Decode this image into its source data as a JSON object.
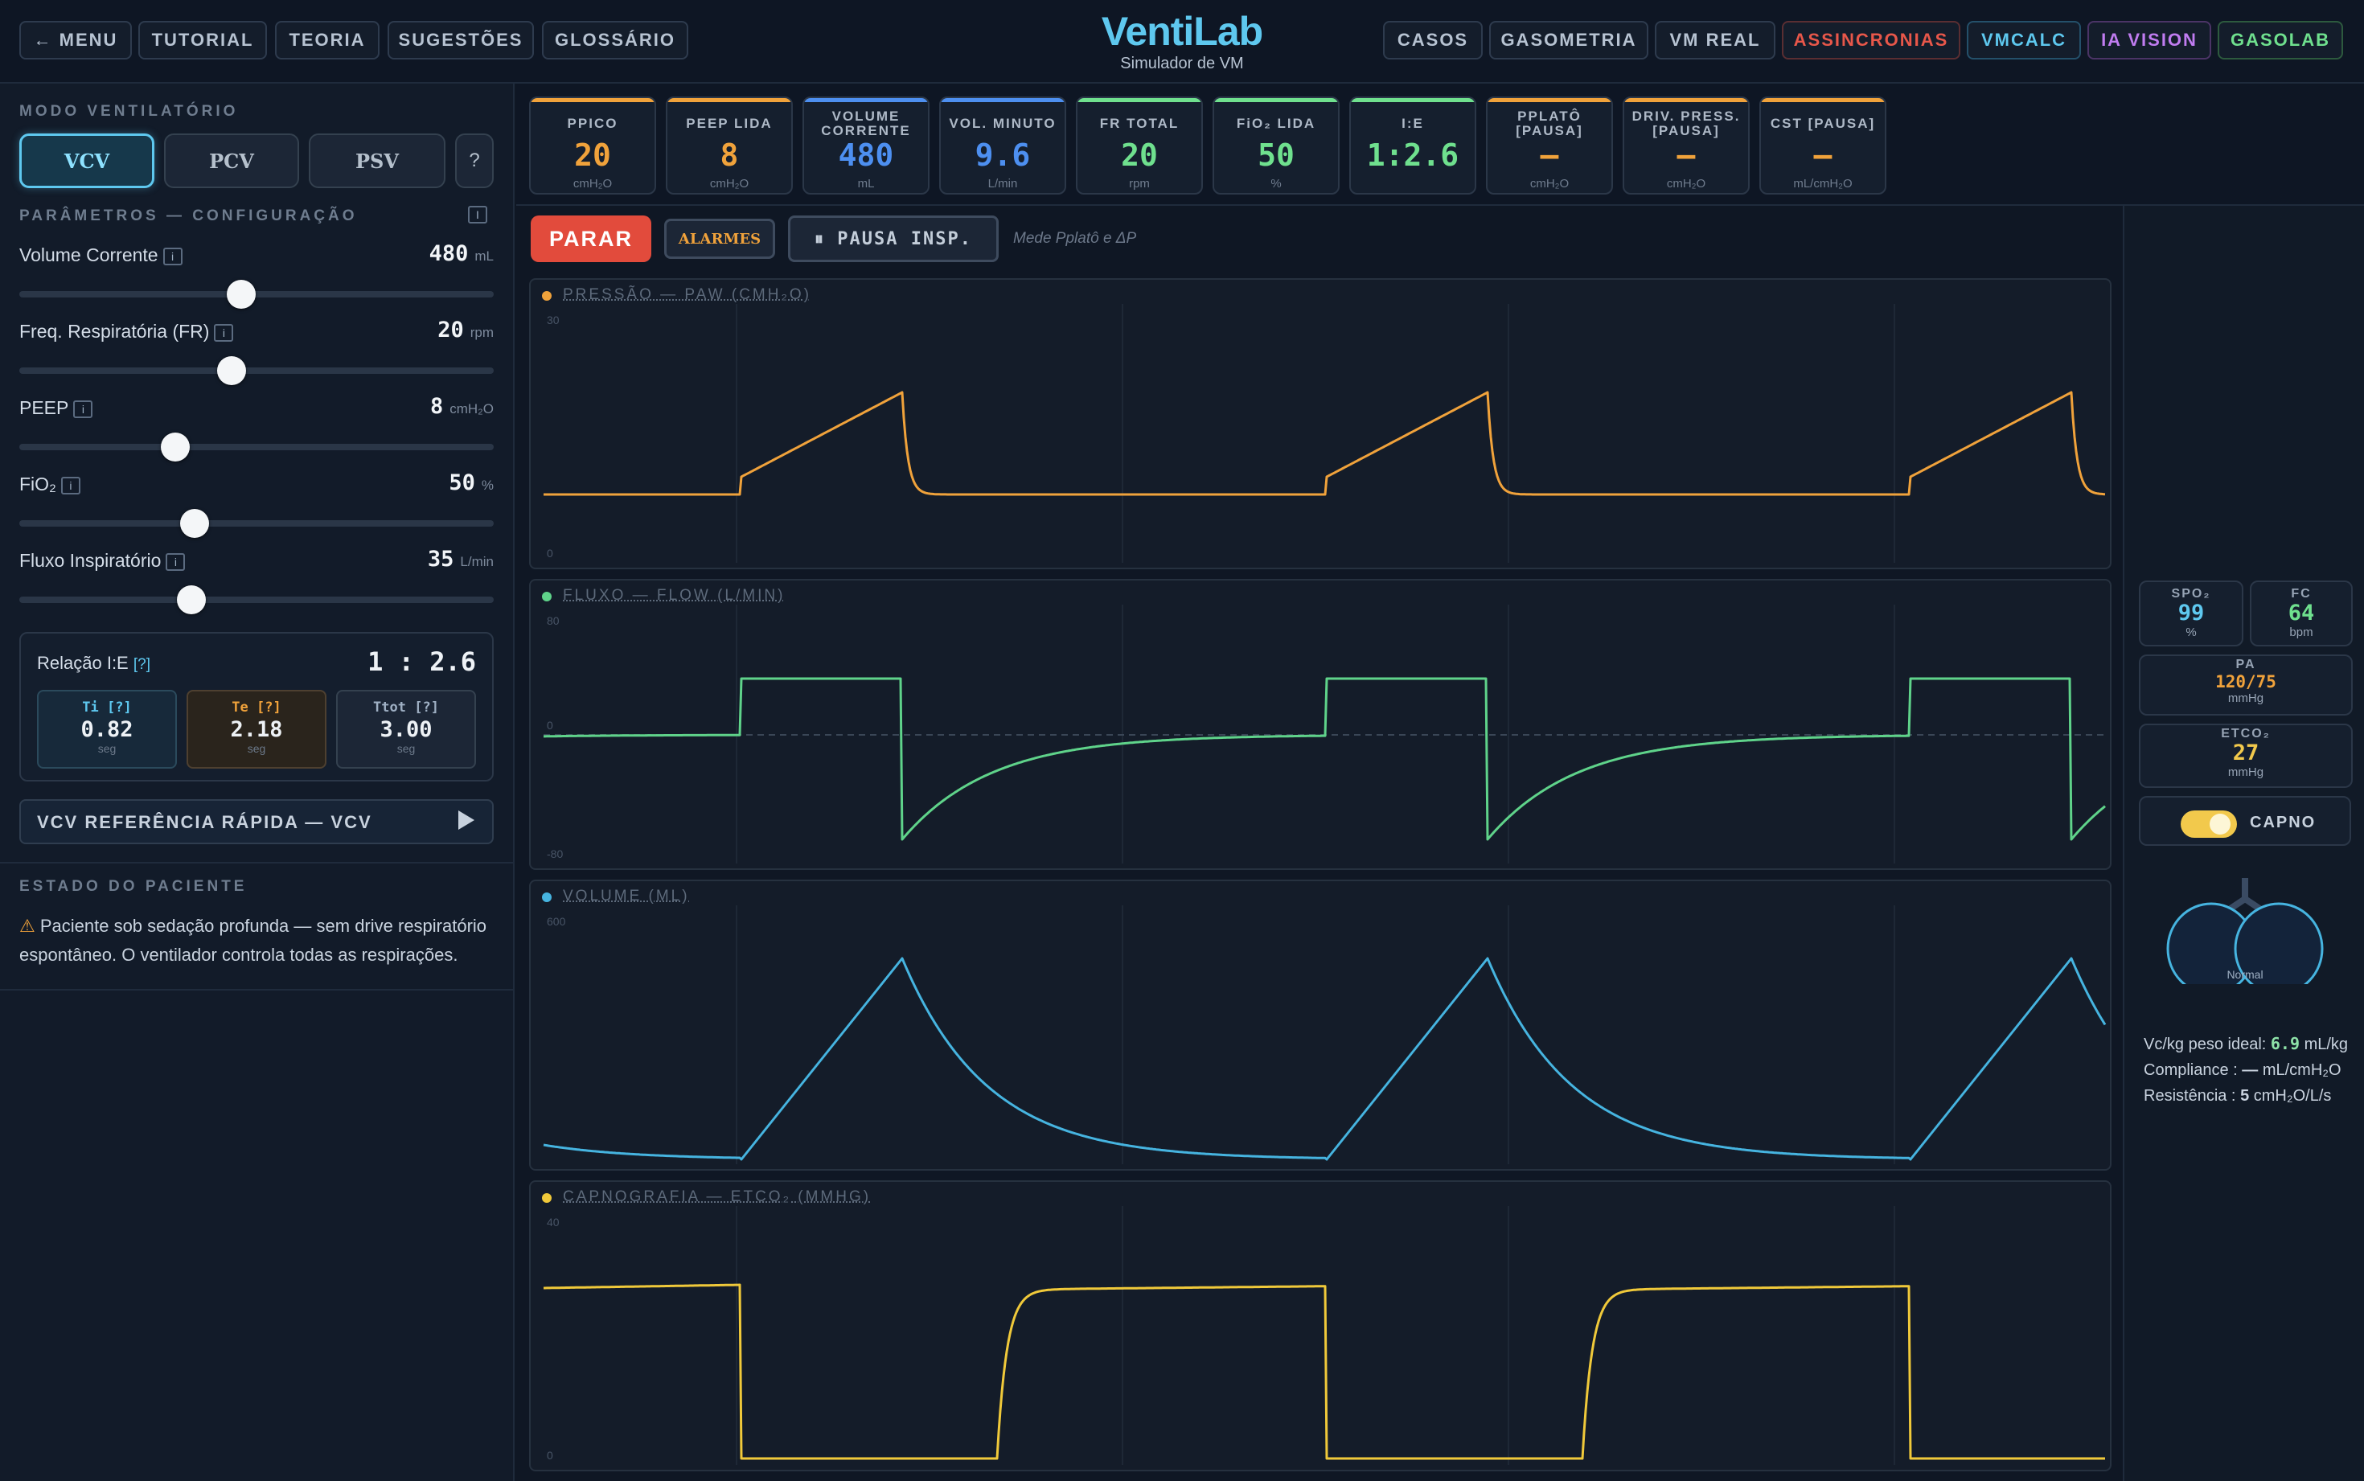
{
  "brand": {
    "title": "VentiLab",
    "subtitle": "Simulador de VM"
  },
  "nav_left": [
    {
      "label": "← MENU"
    },
    {
      "label": "TUTORIAL"
    },
    {
      "label": "TEORIA"
    },
    {
      "label": "SUGESTÕES"
    },
    {
      "label": "GLOSSÁRIO"
    }
  ],
  "nav_right": [
    {
      "label": "CASOS",
      "color": "#b7c3d2"
    },
    {
      "label": "GASOMETRIA",
      "color": "#b7c3d2"
    },
    {
      "label": "VM REAL",
      "color": "#b7c3d2"
    },
    {
      "label": "ASSINCRONIAS",
      "color": "#e8574a"
    },
    {
      "label": "VMCALC",
      "color": "#5ec8ef"
    },
    {
      "label": "IA VISION",
      "color": "#c07cf0"
    },
    {
      "label": "GASOLAB",
      "color": "#6fe08e"
    }
  ],
  "left": {
    "mode_title": "MODO VENTILATÓRIO",
    "modes": [
      {
        "label": "VCV",
        "active": true
      },
      {
        "label": "PCV",
        "active": false
      },
      {
        "label": "PSV",
        "active": false
      }
    ],
    "mode_help": "?",
    "params_title": "PARÂMETROS — CONFIGURAÇÃO",
    "info_badge": "i",
    "params_badge": "I",
    "params": [
      {
        "label": "Volume Corrente",
        "value": "480",
        "unit": "mL",
        "level": 0.47
      },
      {
        "label": "Freq. Respiratória (FR)",
        "value": "20",
        "unit": "rpm",
        "level": 0.45
      },
      {
        "label": "PEEP",
        "value": "8",
        "unit": "cmH₂O",
        "level": 0.33
      },
      {
        "label": "FiO₂",
        "value": "50",
        "unit": "%",
        "level": 0.37
      },
      {
        "label": "Fluxo Inspiratório",
        "value": "35",
        "unit": "L/min",
        "level": 0.36
      }
    ],
    "ie": {
      "label": "Relação I:E",
      "help": "[?]",
      "ratio": "1 : 2.6",
      "items": [
        {
          "label": "Ti [?]",
          "value": "0.82",
          "unit": "seg",
          "color": "#5ec8ef",
          "bg": "#17293a",
          "border": "#2b4a5c"
        },
        {
          "label": "Te [?]",
          "value": "2.18",
          "unit": "seg",
          "color": "#f0a23b",
          "bg": "#2a241c",
          "border": "#4e4030"
        },
        {
          "label": "Ttot [?]",
          "value": "3.00",
          "unit": "seg",
          "color": "#9fb0c4",
          "bg": "#1c2636",
          "border": "#34414f"
        }
      ]
    },
    "quickref": "VCV REFERÊNCIA RÁPIDA — VCV",
    "patient_title": "ESTADO DO PACIENTE",
    "patient_warn": "⚠",
    "patient_text": " Paciente sob sedação profunda — sem drive respiratório espontâneo. O ventilador controla todas as respirações."
  },
  "metrics": [
    {
      "label": "PPICO",
      "value": "20",
      "unit": "cmH₂O",
      "color": "#f0a23b"
    },
    {
      "label": "PEEP LIDA",
      "value": "8",
      "unit": "cmH₂O",
      "color": "#f0a23b"
    },
    {
      "label": "VOLUME CORRENTE",
      "value": "480",
      "unit": "mL",
      "color": "#4d8ff0"
    },
    {
      "label": "VOL. MINUTO",
      "value": "9.6",
      "unit": "L/min",
      "color": "#4d8ff0"
    },
    {
      "label": "FR TOTAL",
      "value": "20",
      "unit": "rpm",
      "color": "#6fe08e"
    },
    {
      "label": "FiO₂ LIDA",
      "value": "50",
      "unit": "%",
      "color": "#6fe08e"
    },
    {
      "label": "I:E",
      "value": "1:2.6",
      "unit": "",
      "color": "#6fe08e"
    },
    {
      "label": "PPLATÔ [PAUSA]",
      "value": "—",
      "unit": "cmH₂O",
      "color": "#f0a23b"
    },
    {
      "label": "DRIV. PRESS. [PAUSA]",
      "value": "—",
      "unit": "cmH₂O",
      "color": "#f0a23b"
    },
    {
      "label": "CST [PAUSA]",
      "value": "—",
      "unit": "mL/cmH₂O",
      "color": "#f0a23b"
    }
  ],
  "controls": {
    "stop": "PARAR",
    "alarms": "ALARMES",
    "pause": "⏸ PAUSA INSP.",
    "pause_hint": "Mede Pplatô e ΔP"
  },
  "waves": [
    {
      "id": "pressure",
      "title": "PRESSÃO — PAW (CMH₂O)",
      "color": "#f0a23b",
      "ytop": "30",
      "ymid": "",
      "ybot": "0"
    },
    {
      "id": "flow",
      "title": "FLUXO — FLOW (L/MIN)",
      "color": "#5fd38a",
      "ytop": "80",
      "ymid": "0",
      "ybot": "-80"
    },
    {
      "id": "volume",
      "title": "VOLUME (ML)",
      "color": "#46b4e0",
      "ytop": "600",
      "ymid": "",
      "ybot": ""
    },
    {
      "id": "capno",
      "title": "CAPNOGRAFIA — ETCO₂ (MMHG)",
      "color": "#f0c93a",
      "ytop": "40",
      "ymid": "",
      "ybot": "0"
    }
  ],
  "vitals": {
    "spo2": {
      "label": "SPO₂",
      "value": "99",
      "unit": "%",
      "color": "#5ec8ef"
    },
    "fc": {
      "label": "FC",
      "value": "64",
      "unit": "bpm",
      "color": "#6fe08e"
    },
    "pa": {
      "label": "PA",
      "value": "120/75",
      "unit": "mmHg",
      "color": "#f0a23b"
    },
    "etco2": {
      "label": "ETCO₂",
      "value": "27",
      "unit": "mmHg",
      "color": "#f2c94c"
    }
  },
  "capno_toggle": {
    "label": "CAPNO",
    "on": true
  },
  "lungs_label": "Normal",
  "right_stats": {
    "vc_label": "Vc/kg peso ideal:",
    "vc_value": "6.9",
    "vc_unit": "mL/kg",
    "comp_label": "Compliance :",
    "comp_value": "—",
    "comp_unit": "mL/cmH₂O",
    "res_label": "Resistência :",
    "res_value": "5",
    "res_unit": "cmH₂O/L/s"
  }
}
